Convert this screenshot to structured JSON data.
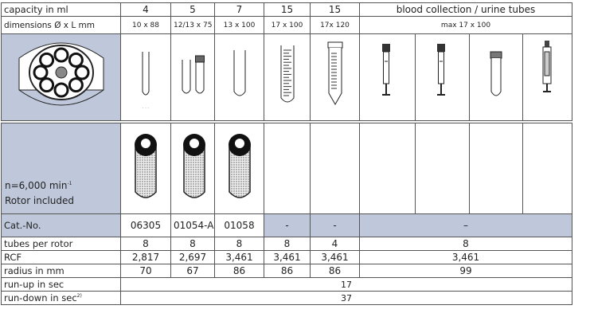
{
  "table": {
    "rows": [
      [
        "capacity in ml",
        "4",
        "5",
        "7",
        "15",
        "15",
        "blood collection / urine tubes"
      ],
      [
        "dimensions Ø x L mm",
        "10 x 88",
        "12/13 x 75",
        "13 x 100",
        "17 x 100",
        "17x 120",
        "max 17 x 100"
      ],
      [
        "Cat.-No.",
        "06305",
        "01054-A",
        "01058",
        "-",
        "-",
        "–"
      ],
      [
        "tubes per rotor",
        "8",
        "8",
        "8",
        "8",
        "4",
        "8"
      ],
      [
        "RCF",
        "2,817",
        "2,697",
        "3,461",
        "3,461",
        "3,461",
        "3,461"
      ],
      [
        "radius in mm",
        "70",
        "67",
        "86",
        "86",
        "86",
        "99"
      ],
      [
        "run-up in sec",
        "17"
      ],
      [
        "run-down in sec",
        "37"
      ]
    ],
    "rotor": {
      "speed": "n=6,000 min",
      "speed_exp": "-1",
      "note": "Rotor included"
    },
    "run_down_note": "2)"
  }
}
